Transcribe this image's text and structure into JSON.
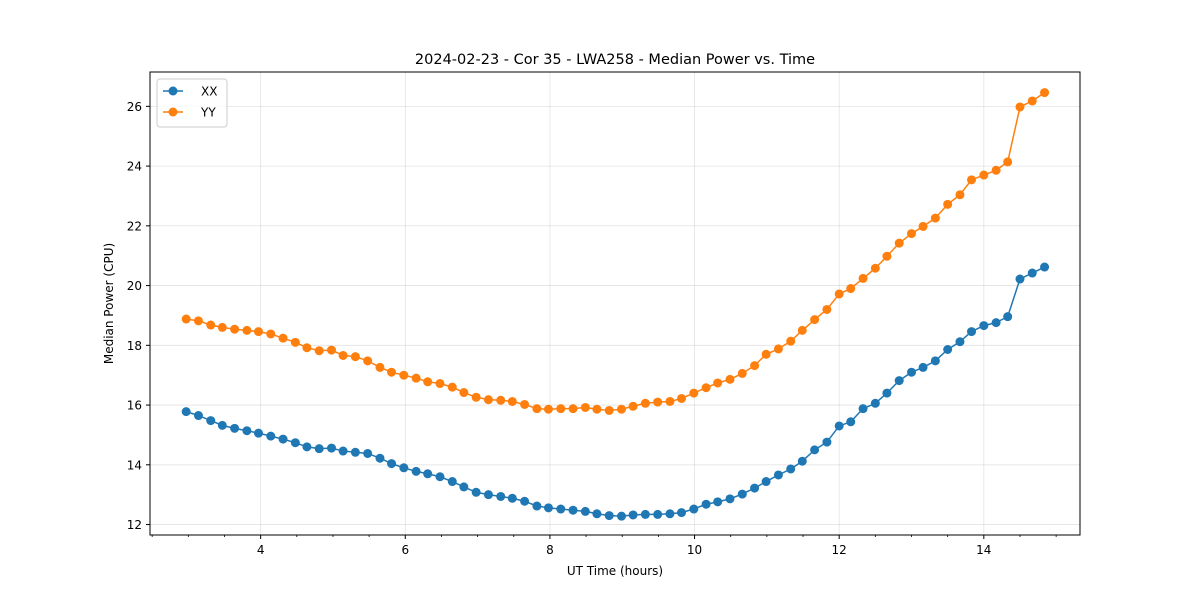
{
  "chart_data": {
    "type": "line",
    "title": "2024-02-23 - Cor 35 - LWA258 - Median Power vs. Time",
    "xlabel": "UT Time (hours)",
    "ylabel": "Median Power (CPU)",
    "xlim": [
      2.47,
      15.33
    ],
    "ylim": [
      11.65,
      27.15
    ],
    "x_ticks": [
      4,
      6,
      8,
      10,
      12,
      14
    ],
    "y_ticks": [
      12,
      14,
      16,
      18,
      20,
      22,
      24,
      26
    ],
    "x_minor_step": 0.5,
    "grid": true,
    "legend_position": "top-left",
    "x": [
      2.97,
      3.14,
      3.31,
      3.47,
      3.64,
      3.81,
      3.97,
      4.14,
      4.31,
      4.48,
      4.64,
      4.81,
      4.98,
      5.14,
      5.31,
      5.48,
      5.65,
      5.81,
      5.98,
      6.15,
      6.31,
      6.48,
      6.65,
      6.81,
      6.98,
      7.15,
      7.32,
      7.48,
      7.65,
      7.82,
      7.98,
      8.15,
      8.32,
      8.49,
      8.65,
      8.82,
      8.99,
      9.15,
      9.32,
      9.49,
      9.66,
      9.82,
      9.99,
      10.16,
      10.32,
      10.49,
      10.66,
      10.83,
      10.99,
      11.16,
      11.33,
      11.49,
      11.66,
      11.83,
      12.0,
      12.16,
      12.33,
      12.5,
      12.66,
      12.83,
      13.0,
      13.16,
      13.33,
      13.5,
      13.67,
      13.83,
      14.0,
      14.17,
      14.33,
      14.5,
      14.67,
      14.84
    ],
    "series": [
      {
        "name": "XX",
        "color": "#1f77b4",
        "values": [
          15.78,
          15.65,
          15.48,
          15.32,
          15.22,
          15.14,
          15.06,
          14.96,
          14.86,
          14.74,
          14.6,
          14.54,
          14.56,
          14.46,
          14.42,
          14.38,
          14.22,
          14.04,
          13.9,
          13.78,
          13.7,
          13.6,
          13.44,
          13.26,
          13.08,
          13.0,
          12.94,
          12.88,
          12.78,
          12.62,
          12.56,
          12.52,
          12.48,
          12.44,
          12.36,
          12.3,
          12.28,
          12.32,
          12.34,
          12.34,
          12.36,
          12.4,
          12.52,
          12.68,
          12.76,
          12.86,
          13.02,
          13.22,
          13.44,
          13.66,
          13.86,
          14.12,
          14.5,
          14.76,
          15.3,
          15.44,
          15.88,
          16.06,
          16.4,
          16.82,
          17.1,
          17.26,
          17.48,
          17.86,
          18.12,
          18.46,
          18.66,
          18.76,
          18.96,
          20.22,
          20.42,
          20.62
        ]
      },
      {
        "name": "YY",
        "color": "#ff7f0e",
        "values": [
          18.88,
          18.82,
          18.68,
          18.6,
          18.54,
          18.5,
          18.46,
          18.38,
          18.24,
          18.1,
          17.92,
          17.82,
          17.84,
          17.66,
          17.62,
          17.48,
          17.26,
          17.1,
          17.0,
          16.9,
          16.78,
          16.72,
          16.6,
          16.42,
          16.26,
          16.18,
          16.16,
          16.12,
          16.02,
          15.88,
          15.86,
          15.88,
          15.88,
          15.92,
          15.86,
          15.82,
          15.86,
          15.96,
          16.06,
          16.1,
          16.12,
          16.22,
          16.4,
          16.58,
          16.74,
          16.86,
          17.06,
          17.32,
          17.7,
          17.88,
          18.14,
          18.5,
          18.86,
          19.2,
          19.72,
          19.9,
          20.24,
          20.58,
          20.98,
          21.42,
          21.74,
          21.98,
          22.26,
          22.72,
          23.04,
          23.54,
          23.7,
          23.86,
          24.14,
          25.98,
          26.18,
          26.46
        ]
      }
    ]
  }
}
